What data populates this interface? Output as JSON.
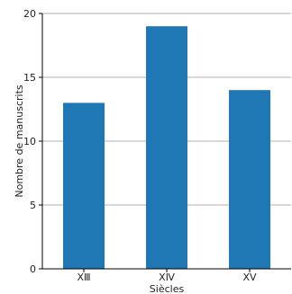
{
  "chart_data": {
    "type": "bar",
    "categories": [
      "XⅢ",
      "XⅣ",
      "XV"
    ],
    "values": [
      13,
      19,
      14
    ],
    "title": "",
    "xlabel": "Siècles",
    "ylabel": "Nombre de manuscrits",
    "ylim": [
      0,
      20
    ],
    "yticks": [
      0,
      5,
      10,
      15,
      20
    ],
    "grid": "horizontal",
    "bar_color": "#1f77b4",
    "grid_color": "#b0b0b0"
  }
}
